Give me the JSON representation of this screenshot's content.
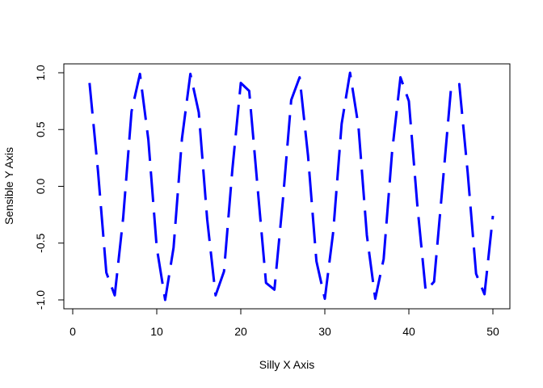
{
  "chart_data": {
    "type": "line",
    "title": "",
    "xlabel": "Silly X Axis",
    "ylabel": "Sensible Y Axis",
    "xlim": [
      0,
      50
    ],
    "ylim": [
      -1.0,
      1.0
    ],
    "x_ticks": [
      0,
      10,
      20,
      30,
      40,
      50
    ],
    "x_tick_labels": [
      "0",
      "10",
      "20",
      "30",
      "40",
      "50"
    ],
    "y_ticks": [
      -1.0,
      -0.5,
      0.0,
      0.5,
      1.0
    ],
    "y_tick_labels": [
      "-1.0",
      "-0.5",
      "0.0",
      "0.5",
      "1.0"
    ],
    "grid": false,
    "legend": "none",
    "line_style": "dashed",
    "series": [
      {
        "color": "#0000ff",
        "x": [
          2,
          3,
          4,
          5,
          6,
          7,
          8,
          9,
          10,
          11,
          12,
          13,
          14,
          15,
          16,
          17,
          18,
          19,
          20,
          21,
          22,
          23,
          24,
          25,
          26,
          27,
          28,
          29,
          30,
          31,
          32,
          33,
          34,
          35,
          36,
          37,
          38,
          39,
          40,
          41,
          42,
          43,
          44,
          45,
          46,
          47,
          48,
          49,
          50
        ],
        "values": [
          0.91,
          0.14,
          -0.76,
          -0.96,
          -0.28,
          0.66,
          0.99,
          0.41,
          -0.54,
          -1.0,
          -0.54,
          0.42,
          0.99,
          0.65,
          -0.29,
          -0.96,
          -0.75,
          0.15,
          0.91,
          0.84,
          -0.01,
          -0.85,
          -0.91,
          -0.13,
          0.76,
          0.96,
          0.27,
          -0.66,
          -0.99,
          -0.4,
          0.55,
          1.0,
          0.53,
          -0.43,
          -0.99,
          -0.64,
          0.3,
          0.96,
          0.75,
          -0.16,
          -0.92,
          -0.84,
          0.0,
          0.85,
          0.9,
          0.12,
          -0.77,
          -0.95,
          -0.26
        ]
      }
    ]
  }
}
